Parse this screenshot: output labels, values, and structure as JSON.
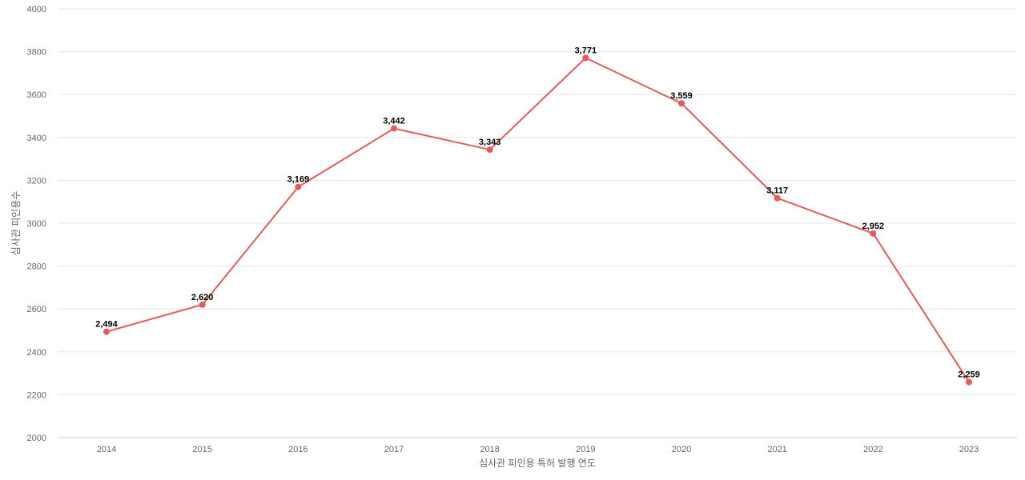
{
  "chart_data": {
    "type": "line",
    "title": "",
    "xlabel": "심사관 피인용 특허 발행 연도",
    "ylabel": "심사관 피인용수",
    "categories": [
      "2014",
      "2015",
      "2016",
      "2017",
      "2018",
      "2019",
      "2020",
      "2021",
      "2022",
      "2023"
    ],
    "series": [
      {
        "values": [
          2494,
          2620,
          3169,
          3442,
          3343,
          3771,
          3559,
          3117,
          2952,
          2259
        ],
        "labels": [
          "2,494",
          "2,620",
          "3,169",
          "3,442",
          "3,343",
          "3,771",
          "3,559",
          "3,117",
          "2,952",
          "2,259"
        ],
        "color": "#e85a5a"
      }
    ],
    "ylim": [
      2000,
      4000
    ],
    "yticks": [
      "2000",
      "2200",
      "2400",
      "2600",
      "2800",
      "3000",
      "3200",
      "3400",
      "3600",
      "3800",
      "4000"
    ],
    "grid": true,
    "legend": "none"
  }
}
